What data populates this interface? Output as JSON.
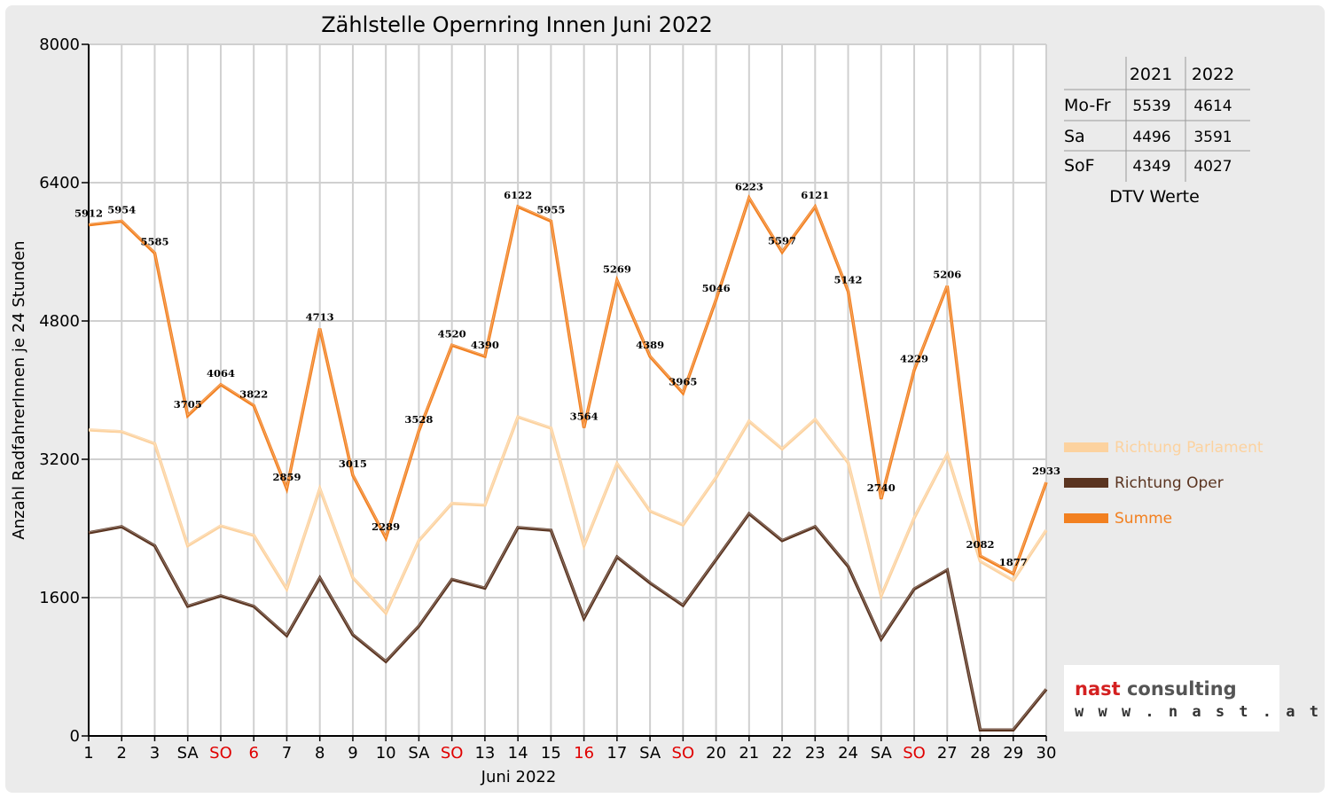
{
  "chart_data": {
    "type": "line",
    "title": "Zählstelle Opernring Innen Juni 2022",
    "xlabel": "Juni 2022",
    "ylabel": "Anzahl RadfahrerInnen je 24 Stunden",
    "ylim": [
      0,
      8000
    ],
    "yticks": [
      "0",
      "1600",
      "3200",
      "4800",
      "6400",
      "8000"
    ],
    "grid": true,
    "legend_position": "right",
    "categories": [
      "1",
      "2",
      "3",
      "SA",
      "SO",
      "6",
      "7",
      "8",
      "9",
      "10",
      "SA",
      "SO",
      "13",
      "14",
      "15",
      "16",
      "17",
      "SA",
      "SO",
      "20",
      "21",
      "22",
      "23",
      "24",
      "SA",
      "SO",
      "27",
      "28",
      "29",
      "30"
    ],
    "red_categories": [
      4,
      5,
      11,
      15,
      18,
      25
    ],
    "series": [
      {
        "name": "Richtung Parlament",
        "color": "#fcd29f",
        "values": [
          3540,
          3520,
          3380,
          2200,
          2430,
          2320,
          1700,
          2860,
          1830,
          1420,
          2260,
          2690,
          2670,
          3690,
          3560,
          2200,
          3150,
          2600,
          2440,
          2990,
          3640,
          3320,
          3660,
          3160,
          1620,
          2520,
          3260,
          2020,
          1800,
          2380
        ]
      },
      {
        "name": "Richtung Oper",
        "color": "#5a3420",
        "values": [
          2350,
          2420,
          2200,
          1500,
          1620,
          1500,
          1160,
          1830,
          1170,
          860,
          1270,
          1810,
          1710,
          2410,
          2380,
          1360,
          2070,
          1770,
          1510,
          2040,
          2570,
          2260,
          2420,
          1960,
          1120,
          1700,
          1920,
          70,
          70,
          540
        ]
      },
      {
        "name": "Summe",
        "color": "#f28020",
        "values": [
          5912,
          5954,
          5585,
          3705,
          4064,
          3822,
          2859,
          4713,
          3015,
          2289,
          3528,
          4520,
          4390,
          6122,
          5955,
          3564,
          5269,
          4389,
          3965,
          5046,
          6223,
          5597,
          6121,
          5142,
          2740,
          4229,
          5206,
          2082,
          1877,
          2933
        ]
      }
    ]
  },
  "dtv_table": {
    "headers": [
      "",
      "2021",
      "2022"
    ],
    "rows": [
      {
        "label": "Mo-Fr",
        "v2021": "5539",
        "v2022": "4614"
      },
      {
        "label": "Sa",
        "v2021": "4496",
        "v2022": "3591"
      },
      {
        "label": "SoF",
        "v2021": "4349",
        "v2022": "4027"
      }
    ],
    "caption": "DTV Werte"
  },
  "logo": {
    "name": "nast consulting",
    "url": "w w w . n a s t . a t",
    "colors": {
      "nast": "#d42020",
      "consulting": "#555555"
    }
  }
}
